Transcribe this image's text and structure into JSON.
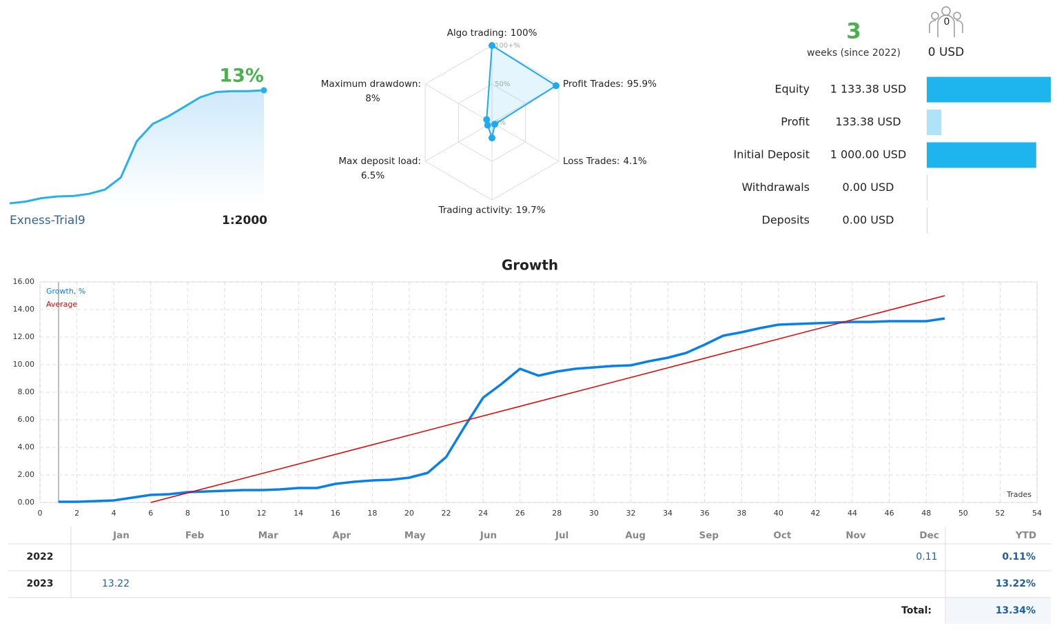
{
  "summary": {
    "growth": "13%",
    "account": "Exness-Trial9",
    "leverage": "1:2000",
    "weeks": "3",
    "weeks_label": "weeks (since 2022)",
    "subscribers": "0",
    "subscribers_funds": "0 USD"
  },
  "chart_data": [
    {
      "type": "sparkline",
      "color": "#29b0ea",
      "values": [
        0,
        0.2,
        0.6,
        0.8,
        0.85,
        1.1,
        1.6,
        3,
        7.2,
        9.2,
        10.1,
        11.2,
        12.3,
        12.9,
        13,
        13,
        13.1
      ]
    },
    {
      "type": "radar",
      "color": "#1eaaf1",
      "categories": [
        "Algo trading:",
        "Profit Trades:",
        "Loss Trades:",
        "Trading activity:",
        "Max deposit load:",
        "Maximum drawdown:"
      ],
      "values": [
        100,
        95.9,
        4.1,
        19.7,
        6.5,
        8
      ],
      "value_labels": [
        "100%",
        "95.9%",
        "4.1%",
        "19.7%",
        "6.5%",
        "8%"
      ],
      "rlim": [
        0,
        100
      ],
      "rticks": [
        {
          "value": 0,
          "label": "0%"
        },
        {
          "value": 50,
          "label": "50%"
        },
        {
          "value": 100,
          "label": "100+%"
        }
      ]
    },
    {
      "type": "hbar",
      "categories": [
        "Equity",
        "Profit",
        "Initial Deposit",
        "Withdrawals",
        "Deposits"
      ],
      "values": [
        1133.38,
        133.38,
        1000,
        0,
        0
      ],
      "value_labels": [
        "1 133.38 USD",
        "133.38 USD",
        "1 000.00 USD",
        "0.00 USD",
        "0.00 USD"
      ],
      "colors": [
        "#1eb4ee",
        "#aee3f9",
        "#1eb4ee",
        "#aee3f9",
        "#aee3f9"
      ]
    },
    {
      "type": "line",
      "title": "Growth",
      "x_label": "Trades",
      "grid": true,
      "xlim": [
        0,
        54
      ],
      "xticks": [
        0,
        2,
        4,
        6,
        8,
        10,
        12,
        14,
        16,
        18,
        20,
        22,
        24,
        26,
        28,
        30,
        32,
        34,
        36,
        38,
        40,
        42,
        44,
        46,
        48,
        50,
        52,
        54
      ],
      "ylim": [
        0,
        16
      ],
      "yticks": [
        {
          "value": 0,
          "label": "0.00"
        },
        {
          "value": 2,
          "label": "2.00"
        },
        {
          "value": 4,
          "label": "4.00"
        },
        {
          "value": 6,
          "label": "6.00"
        },
        {
          "value": 8,
          "label": "8.00"
        },
        {
          "value": 10,
          "label": "10.00"
        },
        {
          "value": 12,
          "label": "12.00"
        },
        {
          "value": 14,
          "label": "14.00"
        },
        {
          "value": 16,
          "label": "16.00"
        }
      ],
      "series": [
        {
          "name": "Growth, %",
          "color": "#0a7fe6",
          "x": [
            1,
            2,
            3,
            4,
            5,
            6,
            7,
            8,
            9,
            10,
            11,
            12,
            13,
            14,
            15,
            16,
            17,
            18,
            19,
            20,
            21,
            22,
            23,
            24,
            25,
            26,
            27,
            28,
            29,
            30,
            31,
            32,
            33,
            34,
            35,
            36,
            37,
            38,
            39,
            40,
            41,
            42,
            43,
            44,
            45,
            46,
            47,
            48,
            49
          ],
          "values": [
            0.05,
            0.05,
            0.1,
            0.15,
            0.35,
            0.55,
            0.6,
            0.75,
            0.8,
            0.85,
            0.9,
            0.9,
            0.95,
            1.05,
            1.05,
            1.35,
            1.5,
            1.6,
            1.65,
            1.8,
            2.15,
            3.3,
            5.5,
            7.6,
            8.6,
            9.7,
            9.2,
            9.5,
            9.7,
            9.8,
            9.9,
            9.95,
            10.25,
            10.5,
            10.85,
            11.45,
            12.1,
            12.35,
            12.65,
            12.9,
            12.95,
            13,
            13.05,
            13.1,
            13.1,
            13.15,
            13.15,
            13.15,
            13.35
          ]
        },
        {
          "name": "Average",
          "color": "#e00000",
          "x": [
            6,
            49
          ],
          "values": [
            0,
            15
          ]
        }
      ]
    }
  ],
  "table": {
    "columns": [
      "Jan",
      "Feb",
      "Mar",
      "Apr",
      "May",
      "Jun",
      "Jul",
      "Aug",
      "Sep",
      "Oct",
      "Nov",
      "Dec",
      "YTD"
    ],
    "rows": [
      {
        "year": "2022",
        "months": [
          null,
          null,
          null,
          null,
          null,
          null,
          null,
          null,
          null,
          null,
          null,
          "0.11"
        ],
        "ytd": "0.11%"
      },
      {
        "year": "2023",
        "months": [
          "13.22",
          null,
          null,
          null,
          null,
          null,
          null,
          null,
          null,
          null,
          null,
          null
        ],
        "ytd": "13.22%"
      }
    ],
    "total_label": "Total:",
    "total": "13.34%"
  }
}
